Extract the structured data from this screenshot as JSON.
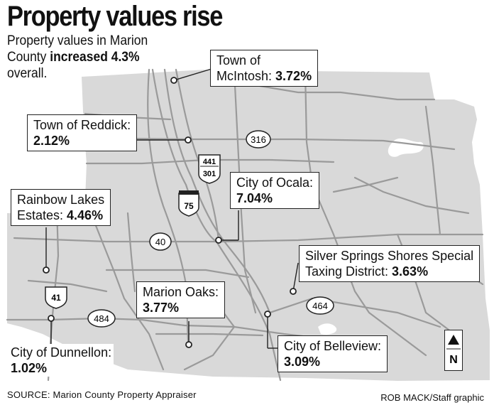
{
  "title": "Property values rise",
  "subtitle": {
    "line_start": "Property values in Marion County ",
    "highlight": "increased 4.3%",
    "line_end": " overall."
  },
  "places": [
    {
      "id": "mcintosh",
      "name_lines": [
        "Town of",
        "McIntosh: "
      ],
      "value": "3.72%"
    },
    {
      "id": "reddick",
      "name_lines": [
        "Town of Reddick:"
      ],
      "value": "2.12%"
    },
    {
      "id": "ocala",
      "name_lines": [
        "City of Ocala:"
      ],
      "value": "7.04%"
    },
    {
      "id": "rainbow",
      "name_lines": [
        "Rainbow Lakes",
        "Estates: "
      ],
      "value": "4.46%"
    },
    {
      "id": "silver",
      "name_lines": [
        "Silver Springs Shores Special",
        "Taxing District: "
      ],
      "value": "3.63%"
    },
    {
      "id": "marion_oaks",
      "name_lines": [
        "Marion Oaks:"
      ],
      "value": "3.77%"
    },
    {
      "id": "belleview",
      "name_lines": [
        "City of Belleview:"
      ],
      "value": "3.09%"
    },
    {
      "id": "dunnellon",
      "name_lines": [
        "City of Dunnellon:"
      ],
      "value": "1.02%"
    }
  ],
  "roads": {
    "sr316": "316",
    "us441_301_top": "441",
    "us441_301_bottom": "301",
    "i75": "75",
    "sr40": "40",
    "us41": "41",
    "sr484": "484",
    "sr464": "464"
  },
  "north_label": "N",
  "source": "SOURCE: Marion County Property Appraiser",
  "credit": "ROB MACK/Staff graphic",
  "colors": {
    "county_fill": "#d9d9d9",
    "road": "#9a9a9a",
    "label_border": "#222222"
  }
}
